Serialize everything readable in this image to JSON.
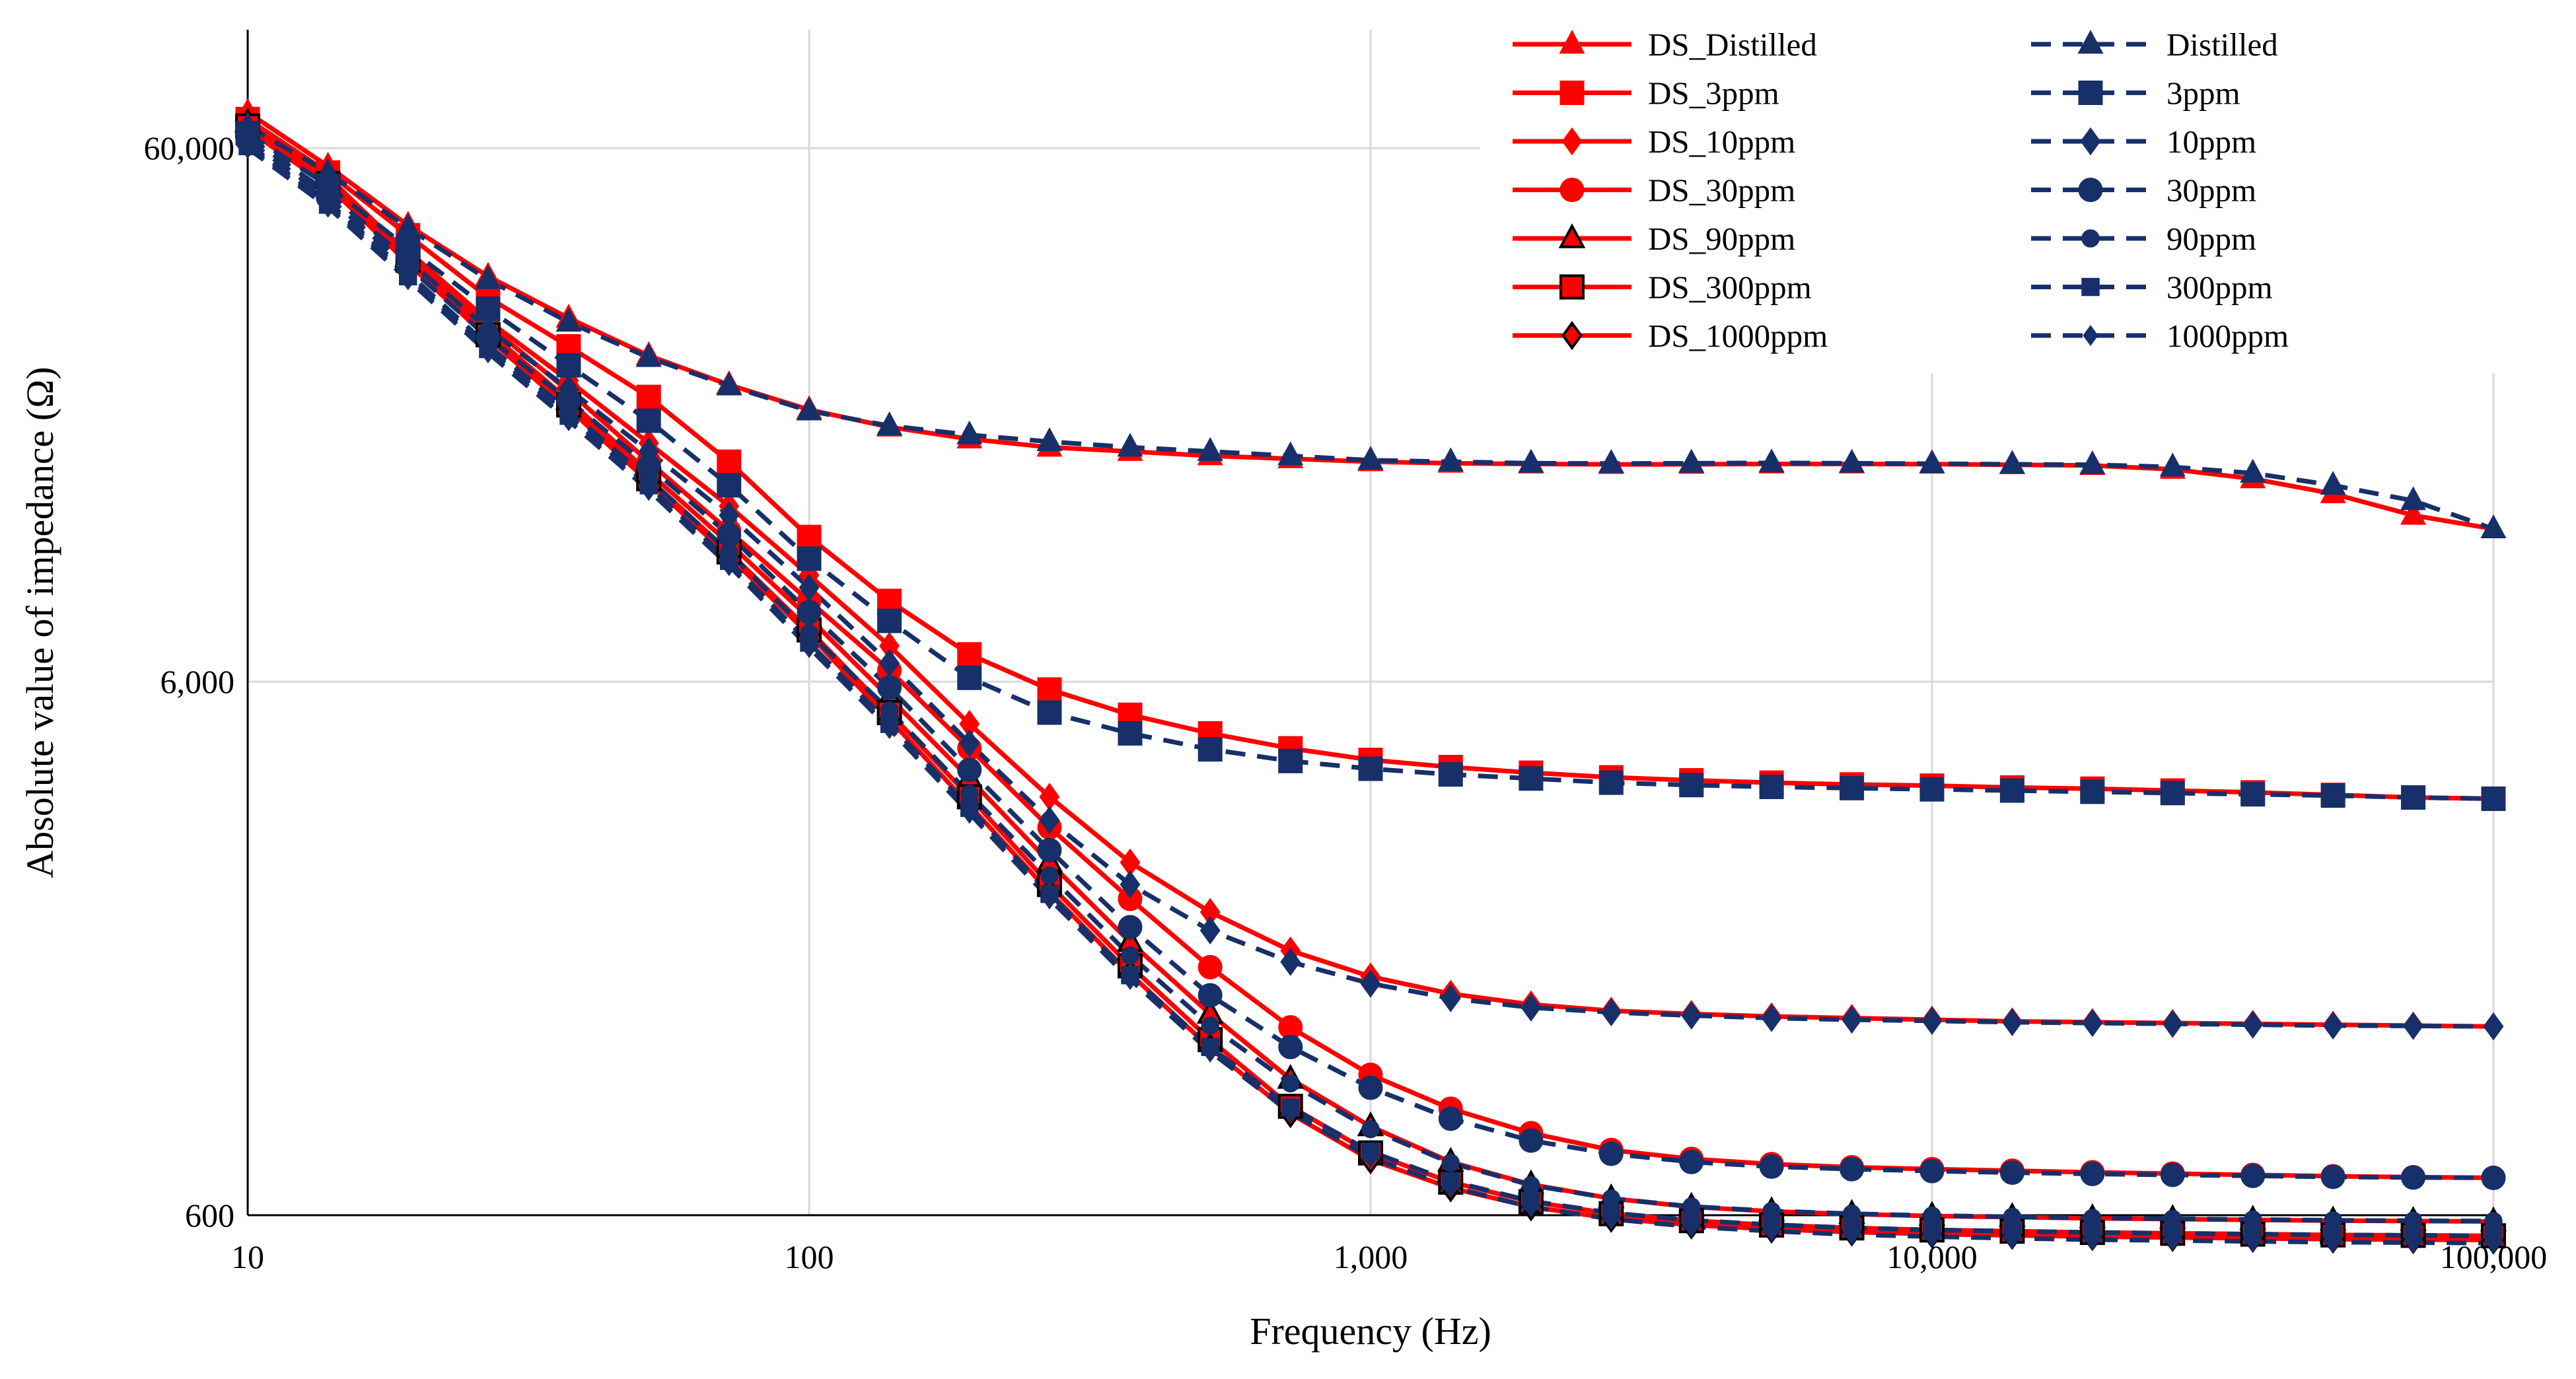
{
  "chart_data": {
    "type": "line",
    "title": "",
    "xlabel": "Frequency (Hz)",
    "ylabel": "Absolute value of impedance (Ω)",
    "xscale": "log",
    "yscale": "log",
    "xlim": [
      10,
      100000
    ],
    "ylim": [
      600,
      100000
    ],
    "x_ticks": [
      10,
      100,
      1000,
      10000,
      100000
    ],
    "x_tick_labels": [
      "10",
      "100",
      "1,000",
      "10,000",
      "100,000"
    ],
    "y_ticks": [
      600,
      6000,
      60000
    ],
    "y_tick_labels": [
      "600",
      "6,000",
      "60,000"
    ],
    "grid": true,
    "legend_position": "top-right",
    "x": [
      10,
      13.9,
      19.3,
      26.8,
      37.3,
      51.8,
      72,
      100,
      139,
      193,
      268,
      373,
      518,
      720,
      1000,
      1389,
      1931,
      2683,
      3728,
      5179,
      7197,
      10000,
      13895,
      19307,
      26827,
      37276,
      51795,
      71969,
      100000
    ],
    "series": [
      {
        "name": "DS_Distilled",
        "color": "#ff0000",
        "dash": false,
        "marker": "triangle",
        "values": [
          70000,
          55500,
          43000,
          34500,
          28800,
          24500,
          21600,
          19400,
          18000,
          17100,
          16500,
          16200,
          15900,
          15700,
          15500,
          15400,
          15350,
          15320,
          15330,
          15350,
          15350,
          15340,
          15300,
          15250,
          15000,
          14400,
          13500,
          12300,
          11600
        ]
      },
      {
        "name": "DS_3ppm",
        "color": "#ff0000",
        "dash": false,
        "marker": "square",
        "values": [
          68000,
          54000,
          41200,
          31500,
          25500,
          20500,
          15500,
          11200,
          8500,
          6750,
          5800,
          5200,
          4800,
          4500,
          4280,
          4150,
          4050,
          3970,
          3920,
          3880,
          3850,
          3830,
          3800,
          3780,
          3750,
          3720,
          3680,
          3640,
          3620
        ]
      },
      {
        "name": "DS_10ppm",
        "color": "#ff0000",
        "dash": false,
        "marker": "diamond",
        "values": [
          66000,
          51000,
          38500,
          28500,
          22000,
          16800,
          12800,
          9500,
          7000,
          5000,
          3650,
          2750,
          2220,
          1880,
          1680,
          1560,
          1490,
          1450,
          1430,
          1415,
          1405,
          1395,
          1385,
          1380,
          1375,
          1370,
          1365,
          1360,
          1355
        ]
      },
      {
        "name": "DS_30ppm",
        "color": "#ff0000",
        "dash": false,
        "marker": "circle",
        "values": [
          68000,
          53000,
          38000,
          28000,
          21000,
          15500,
          11500,
          8500,
          6300,
          4500,
          3200,
          2350,
          1750,
          1350,
          1100,
          950,
          855,
          795,
          765,
          748,
          738,
          732,
          727,
          722,
          718,
          714,
          710,
          707,
          705
        ]
      },
      {
        "name": "DS_90ppm",
        "color": "#ff0000",
        "dash": false,
        "marker": "triangle-open",
        "values": [
          67000,
          52500,
          37500,
          27200,
          20200,
          14800,
          10900,
          7900,
          5600,
          3950,
          2750,
          1950,
          1430,
          1080,
          880,
          755,
          685,
          645,
          622,
          610,
          603,
          598,
          595,
          592,
          590,
          588,
          586,
          585,
          584
        ]
      },
      {
        "name": "DS_300ppm",
        "color": "#ff0000",
        "dash": false,
        "marker": "square-open",
        "values": [
          66000,
          51500,
          37000,
          26800,
          19800,
          14400,
          10500,
          7500,
          5250,
          3650,
          2500,
          1760,
          1280,
          960,
          785,
          692,
          636,
          604,
          586,
          575,
          568,
          563,
          560,
          557,
          555,
          553,
          551,
          550,
          549
        ]
      },
      {
        "name": "DS_1000ppm",
        "color": "#ff0000",
        "dash": false,
        "marker": "diamond-open",
        "values": [
          65000,
          51000,
          36500,
          26400,
          19500,
          14200,
          10300,
          7350,
          5100,
          3520,
          2420,
          1700,
          1235,
          930,
          762,
          675,
          622,
          592,
          575,
          565,
          558,
          553,
          550,
          547,
          545,
          543,
          541,
          540,
          539
        ]
      },
      {
        "name": "Distilled",
        "color": "#17306a",
        "dash": true,
        "marker": "triangle",
        "values": [
          66000,
          54000,
          42500,
          34000,
          28300,
          24300,
          21500,
          19300,
          18100,
          17400,
          16900,
          16500,
          16200,
          15900,
          15600,
          15500,
          15400,
          15380,
          15400,
          15420,
          15400,
          15370,
          15330,
          15300,
          15150,
          14750,
          14000,
          13100,
          11600
        ]
      },
      {
        "name": "3ppm",
        "color": "#17306a",
        "dash": true,
        "marker": "square",
        "values": [
          64000,
          51000,
          39000,
          30000,
          23500,
          18500,
          14000,
          10200,
          7800,
          6100,
          5250,
          4800,
          4480,
          4260,
          4120,
          4020,
          3950,
          3880,
          3840,
          3810,
          3790,
          3770,
          3750,
          3730,
          3710,
          3690,
          3670,
          3640,
          3620
        ]
      },
      {
        "name": "10ppm",
        "color": "#17306a",
        "dash": true,
        "marker": "diamond",
        "values": [
          63000,
          49500,
          37000,
          27500,
          21200,
          16200,
          12300,
          9000,
          6500,
          4600,
          3300,
          2500,
          2050,
          1790,
          1630,
          1530,
          1470,
          1440,
          1420,
          1405,
          1395,
          1388,
          1380,
          1375,
          1370,
          1365,
          1360,
          1358,
          1355
        ]
      },
      {
        "name": "30ppm",
        "color": "#17306a",
        "dash": true,
        "marker": "circle",
        "values": [
          62000,
          48500,
          36000,
          26500,
          20200,
          15200,
          11300,
          8100,
          5850,
          4100,
          2900,
          2080,
          1550,
          1240,
          1040,
          910,
          828,
          782,
          755,
          740,
          732,
          726,
          721,
          717,
          714,
          711,
          708,
          706,
          705
        ]
      },
      {
        "name": "90ppm",
        "color": "#17306a",
        "dash": true,
        "marker": "circle-small",
        "values": [
          61000,
          47500,
          35000,
          25600,
          19300,
          14400,
          10500,
          7400,
          5300,
          3700,
          2600,
          1840,
          1360,
          1060,
          870,
          752,
          683,
          645,
          623,
          611,
          604,
          599,
          596,
          593,
          591,
          589,
          587,
          586,
          585
        ]
      },
      {
        "name": "300ppm",
        "color": "#17306a",
        "dash": true,
        "marker": "square-small",
        "values": [
          60500,
          47000,
          34500,
          25200,
          18900,
          14000,
          10100,
          7100,
          5000,
          3480,
          2400,
          1690,
          1240,
          955,
          790,
          695,
          638,
          606,
          587,
          576,
          568,
          563,
          560,
          557,
          555,
          553,
          551,
          550,
          549
        ]
      },
      {
        "name": "1000ppm",
        "color": "#17306a",
        "dash": true,
        "marker": "diamond-small",
        "values": [
          60000,
          46500,
          34000,
          24800,
          18500,
          13700,
          9900,
          6950,
          4900,
          3400,
          2350,
          1660,
          1215,
          935,
          770,
          678,
          622,
          590,
          571,
          560,
          552,
          547,
          543,
          540,
          538,
          536,
          534,
          533,
          532
        ]
      }
    ]
  }
}
